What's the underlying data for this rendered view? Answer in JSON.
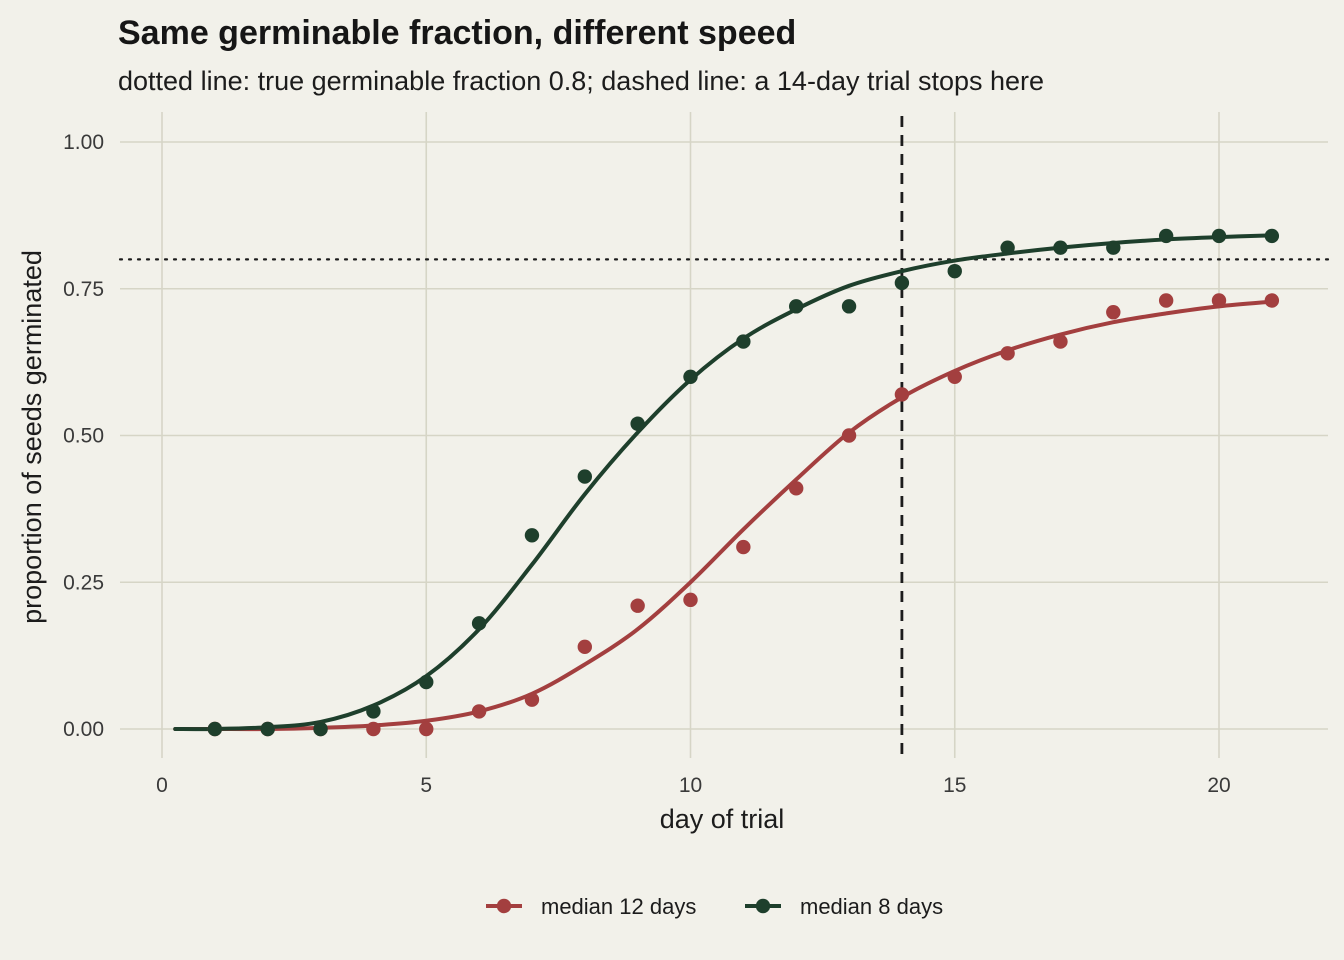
{
  "chart_data": {
    "type": "line",
    "title": "Same germinable fraction, different speed",
    "subtitle": "dotted line: true germinable fraction 0.8; dashed line: a 14-day trial stops here",
    "xlabel": "day of trial",
    "ylabel": "proportion of seeds germinated",
    "xlim": [
      -0.8,
      22.2
    ],
    "ylim": [
      -0.05,
      1.05
    ],
    "x_ticks": [
      0,
      5,
      10,
      15,
      20
    ],
    "x_tick_labels": [
      "0",
      "5",
      "10",
      "15",
      "20"
    ],
    "y_ticks": [
      0,
      0.25,
      0.5,
      0.75,
      1.0
    ],
    "y_tick_labels": [
      "0.00",
      "0.25",
      "0.50",
      "0.75",
      "1.00"
    ],
    "grid": true,
    "legend_position": "bottom",
    "reference_lines": {
      "horizontal_dotted_y": 0.8,
      "vertical_dashed_x": 14
    },
    "series": [
      {
        "name": "median 12 days",
        "color": "#a33f3f",
        "points_x": [
          1,
          2,
          3,
          4,
          5,
          6,
          7,
          8,
          9,
          10,
          11,
          12,
          13,
          14,
          15,
          16,
          17,
          18,
          19,
          20,
          21
        ],
        "points_y": [
          0,
          0,
          0,
          0,
          0,
          0.03,
          0.05,
          0.14,
          0.21,
          0.22,
          0.31,
          0.41,
          0.5,
          0.57,
          0.6,
          0.64,
          0.66,
          0.71,
          0.73,
          0.73,
          0.73
        ],
        "curve_x": [
          0.25,
          1,
          2,
          3,
          4,
          5,
          6,
          7,
          8,
          9,
          10,
          11,
          12,
          13,
          14,
          15,
          16,
          17,
          18,
          19,
          20,
          21
        ],
        "curve_y": [
          0,
          0,
          0,
          0.002,
          0.006,
          0.014,
          0.03,
          0.06,
          0.11,
          0.17,
          0.25,
          0.34,
          0.425,
          0.505,
          0.565,
          0.61,
          0.645,
          0.672,
          0.693,
          0.708,
          0.72,
          0.728
        ]
      },
      {
        "name": "median 8 days",
        "color": "#1e3f2c",
        "points_x": [
          1,
          2,
          3,
          4,
          5,
          6,
          7,
          8,
          9,
          10,
          11,
          12,
          13,
          14,
          15,
          16,
          17,
          18,
          19,
          20,
          21
        ],
        "points_y": [
          0,
          0,
          0,
          0.03,
          0.08,
          0.18,
          0.33,
          0.43,
          0.52,
          0.6,
          0.66,
          0.72,
          0.72,
          0.76,
          0.78,
          0.82,
          0.82,
          0.82,
          0.84,
          0.84,
          0.84
        ],
        "curve_x": [
          0.25,
          1,
          2,
          3,
          4,
          5,
          6,
          7,
          8,
          9,
          10,
          11,
          12,
          13,
          14,
          15,
          16,
          17,
          18,
          19,
          20,
          21
        ],
        "curve_y": [
          0,
          0,
          0.003,
          0.012,
          0.04,
          0.09,
          0.17,
          0.28,
          0.4,
          0.505,
          0.595,
          0.665,
          0.715,
          0.755,
          0.78,
          0.798,
          0.81,
          0.82,
          0.828,
          0.834,
          0.838,
          0.841
        ]
      }
    ]
  }
}
